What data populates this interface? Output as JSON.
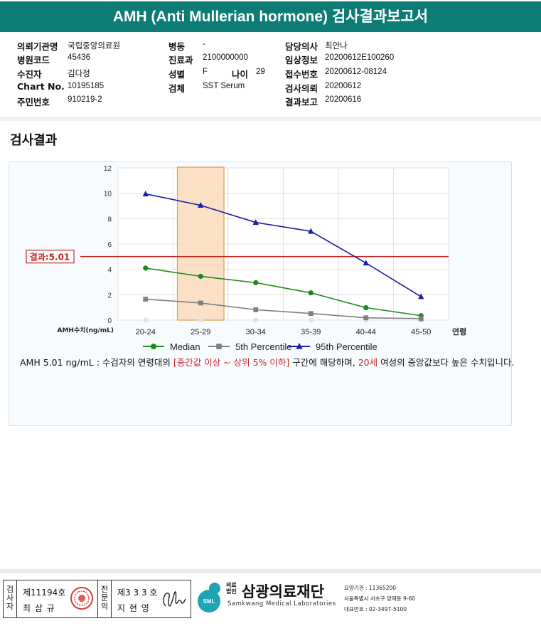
{
  "report": {
    "title": "AMH (Anti Mullerian hormone) 검사결과보고서"
  },
  "info": {
    "col1": [
      {
        "label": "의뢰기관명",
        "value": "국립중앙의료원"
      },
      {
        "label": "병원코드",
        "value": "45436"
      },
      {
        "label": "수진자",
        "value": "김다정"
      },
      {
        "label": "Chart No.",
        "value": "10195185"
      },
      {
        "label": "주민번호",
        "value": "910219-2"
      }
    ],
    "col2": [
      {
        "label": "병동",
        "value": "-"
      },
      {
        "label": "진료과",
        "value": "2100000000"
      },
      {
        "label": "성별",
        "value": "F"
      },
      {
        "label": "검체",
        "value": "SST Serum"
      }
    ],
    "age": {
      "label": "나이",
      "value": "29"
    },
    "col3": [
      {
        "label": "담당의사",
        "value": "최안나"
      },
      {
        "label": "임상정보",
        "value": "20200612E100260"
      },
      {
        "label": "접수번호",
        "value": "20200612-08124"
      },
      {
        "label": "검사의뢰",
        "value": "20200612"
      },
      {
        "label": "결과보고",
        "value": "20200616"
      }
    ]
  },
  "section": {
    "title": "검사결과"
  },
  "chart_data": {
    "type": "line",
    "categories": [
      "20-24",
      "25-29",
      "30-34",
      "35-39",
      "40-44",
      "45-50"
    ],
    "x_suffix_label": "연령",
    "ylabel": "AMH수치(ng/mL)",
    "ylim": [
      0,
      12
    ],
    "yticks": [
      "0",
      "2",
      "4",
      "6",
      "8",
      "10",
      "12"
    ],
    "highlight_category": "25-29",
    "result_line": {
      "label": "결과:5.01",
      "value": 5.01
    },
    "grid": true,
    "legend_position": "bottom",
    "series": [
      {
        "name": "Median",
        "color": "#1a8a1a",
        "marker": "circle",
        "values": [
          4.1,
          3.45,
          2.95,
          2.15,
          0.98,
          0.35
        ]
      },
      {
        "name": "5th Percentile",
        "color": "#7f7f7f",
        "marker": "square",
        "values": [
          1.65,
          1.35,
          0.82,
          0.52,
          0.18,
          0.12
        ]
      },
      {
        "name": "95th Percentile",
        "color": "#1c1ca8",
        "marker": "triangle",
        "values": [
          9.95,
          9.05,
          7.7,
          7.0,
          4.5,
          1.85
        ]
      }
    ]
  },
  "result_text": {
    "part1": "AMH  5.01 ng/mL : 수검자의 연령대의 ",
    "highlight1": "[중간값 이상 ~ 상위 5% 이하]",
    "part2": "  구간에 해당하며, ",
    "highlight2": "20세",
    "part3": " 여성의 중앙값보다 높은 수치입니다."
  },
  "footer": {
    "examiner": {
      "label_chars": [
        "검",
        "사",
        "자"
      ],
      "license": "제11194호",
      "name": "최 삼 규"
    },
    "specialist": {
      "label_chars": [
        "전",
        "문",
        "의"
      ],
      "license": "제3 3 3 호",
      "name": "지 현 영"
    },
    "org": {
      "logo_text": "SML",
      "tag": [
        "의료",
        "법인"
      ],
      "name": "삼광의료재단",
      "name_en": "Samkwang Medical Laboratories",
      "meta": [
        "요양기관 : 11365200",
        "서울특별시 서초구 양재동 9-60",
        "대표번호 : 02-3497-5100"
      ]
    }
  }
}
